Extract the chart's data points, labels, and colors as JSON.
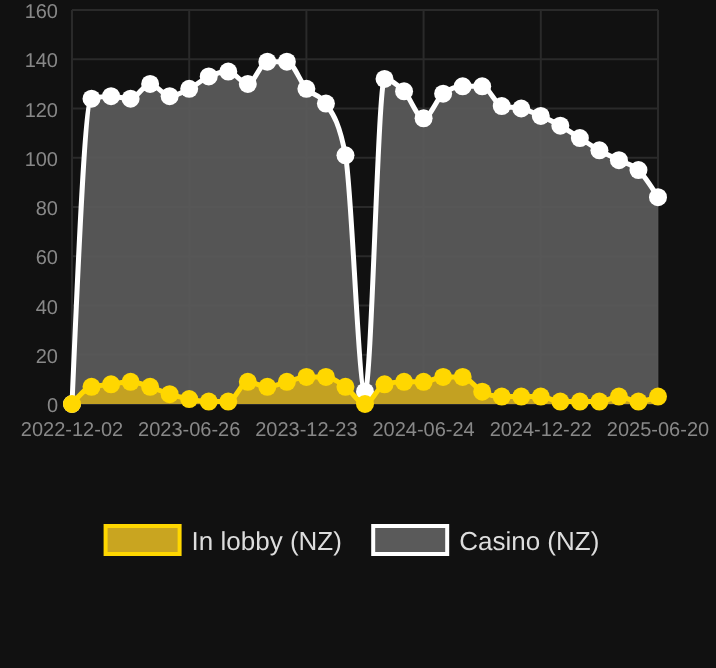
{
  "chart_data": {
    "type": "area",
    "categories": [
      "2022-12-02",
      null,
      null,
      null,
      null,
      null,
      "2023-06-26",
      null,
      null,
      null,
      null,
      null,
      "2023-12-23",
      null,
      null,
      null,
      null,
      null,
      "2024-06-24",
      null,
      null,
      null,
      null,
      null,
      "2024-12-22",
      null,
      null,
      null,
      null,
      null,
      "2025-06-20"
    ],
    "series": [
      {
        "name": "In lobby (NZ)",
        "color": "#ffd700",
        "values": [
          0,
          7,
          8,
          9,
          7,
          4,
          2,
          1,
          1,
          9,
          7,
          9,
          11,
          11,
          7,
          0,
          8,
          9,
          9,
          11,
          11,
          5,
          3,
          3,
          3,
          1,
          1,
          1,
          3,
          1,
          3
        ]
      },
      {
        "name": "Casino (NZ)",
        "color": "#ffffff",
        "values": [
          0,
          124,
          125,
          124,
          130,
          125,
          128,
          133,
          135,
          130,
          139,
          139,
          128,
          122,
          101,
          5,
          132,
          127,
          116,
          126,
          129,
          129,
          121,
          120,
          117,
          113,
          108,
          103,
          99,
          95,
          84
        ]
      }
    ],
    "ylim": [
      0,
      160
    ],
    "yticks": [
      0,
      20,
      40,
      60,
      80,
      100,
      120,
      140,
      160
    ],
    "grid": true,
    "legend": "bottom",
    "marker": "circle"
  }
}
